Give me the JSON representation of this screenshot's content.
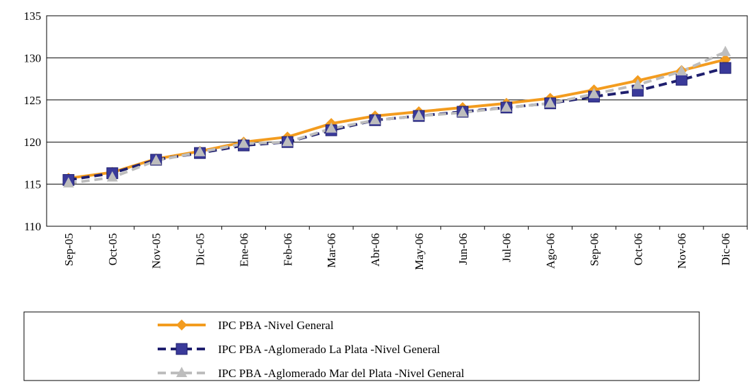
{
  "chart_data": {
    "type": "line",
    "categories": [
      "Sep-05",
      "Oct-05",
      "Nov-05",
      "Dic-05",
      "Ene-06",
      "Feb-06",
      "Mar-06",
      "Abr-06",
      "May-06",
      "Jun-06",
      "Jul-06",
      "Ago-06",
      "Sep-06",
      "Oct-06",
      "Nov-06",
      "Dic-06"
    ],
    "series": [
      {
        "name": "IPC PBA -Nivel General",
        "color": "#f39c1f",
        "marker": "diamond",
        "dash": "solid",
        "values": [
          115.7,
          116.4,
          118.0,
          118.9,
          120.0,
          120.6,
          122.2,
          123.1,
          123.6,
          124.1,
          124.6,
          125.2,
          126.2,
          127.3,
          128.5,
          129.8
        ]
      },
      {
        "name": "IPC PBA -Aglomerado La Plata -Nivel General",
        "color": "#1f1f6e",
        "marker": "square",
        "dash": "dashed",
        "values": [
          115.5,
          116.3,
          117.9,
          118.7,
          119.6,
          120.0,
          121.4,
          122.6,
          123.1,
          123.6,
          124.1,
          124.6,
          125.4,
          126.1,
          127.4,
          128.8
        ]
      },
      {
        "name": "IPC PBA -Aglomerado Mar del Plata -Nivel General",
        "color": "#bdbdbd",
        "marker": "triangle",
        "dash": "dashed",
        "values": [
          115.1,
          115.8,
          117.8,
          118.8,
          119.8,
          120.0,
          121.6,
          122.6,
          123.1,
          123.5,
          124.1,
          124.6,
          125.7,
          126.8,
          128.4,
          130.7
        ]
      }
    ],
    "ylim": [
      110,
      135
    ],
    "yticks": [
      110,
      115,
      120,
      125,
      130,
      135
    ],
    "grid": true,
    "legend": "bottom"
  }
}
